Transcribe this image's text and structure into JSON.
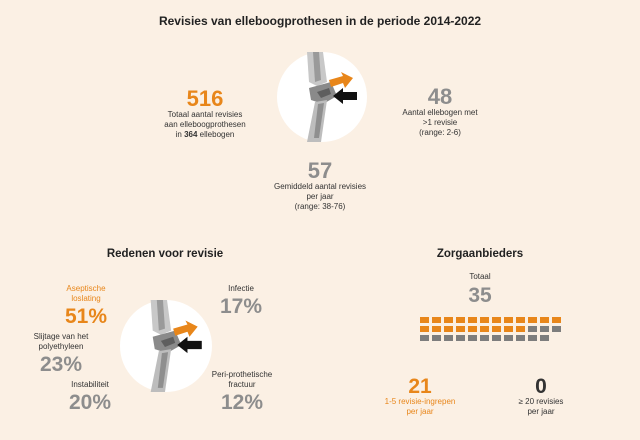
{
  "title": "Revisies van elleboogprothesen in de periode 2014-2022",
  "top": {
    "total_value": "516",
    "total_line1": "Totaal aantal revisies",
    "total_line2": "aan elleboogprothesen",
    "total_line3_pre": "in",
    "total_line3_num": "364",
    "total_line3_post": "ellebogen",
    "multi_value": "48",
    "multi_line1": "Aantal ellebogen met",
    "multi_line2": ">1 revisie",
    "multi_line3": "(range: 2-6)",
    "avg_value": "57",
    "avg_line1": "Gemiddeld aantal revisies",
    "avg_line2": "per jaar",
    "avg_line3": "(range: 38-76)"
  },
  "reasons": {
    "heading": "Redenen voor revisie",
    "aseptic_label1": "Aseptische",
    "aseptic_label2": "loslating",
    "aseptic_value": "51%",
    "wear_label1": "Slijtage van het",
    "wear_label2": "polyethyleen",
    "wear_value": "23%",
    "instab_label": "Instabiliteit",
    "instab_value": "20%",
    "infect_label": "Infectie",
    "infect_value": "17%",
    "peri_label1": "Peri-prothetische",
    "peri_label2": "fractuur",
    "peri_value": "12%"
  },
  "providers": {
    "heading": "Zorgaanbieders",
    "total_label": "Totaal",
    "total_value": "35",
    "orange_count": 21,
    "grey_count": 14,
    "low_value": "21",
    "low_line1": "1-5 revisie-ingrepen",
    "low_line2": "per jaar",
    "high_value": "0",
    "high_line1": "≥ 20 revisies",
    "high_line2": "per jaar"
  },
  "colors": {
    "accent": "#e8861a",
    "grey": "#8d8d8d",
    "background": "#fbf0e4"
  }
}
